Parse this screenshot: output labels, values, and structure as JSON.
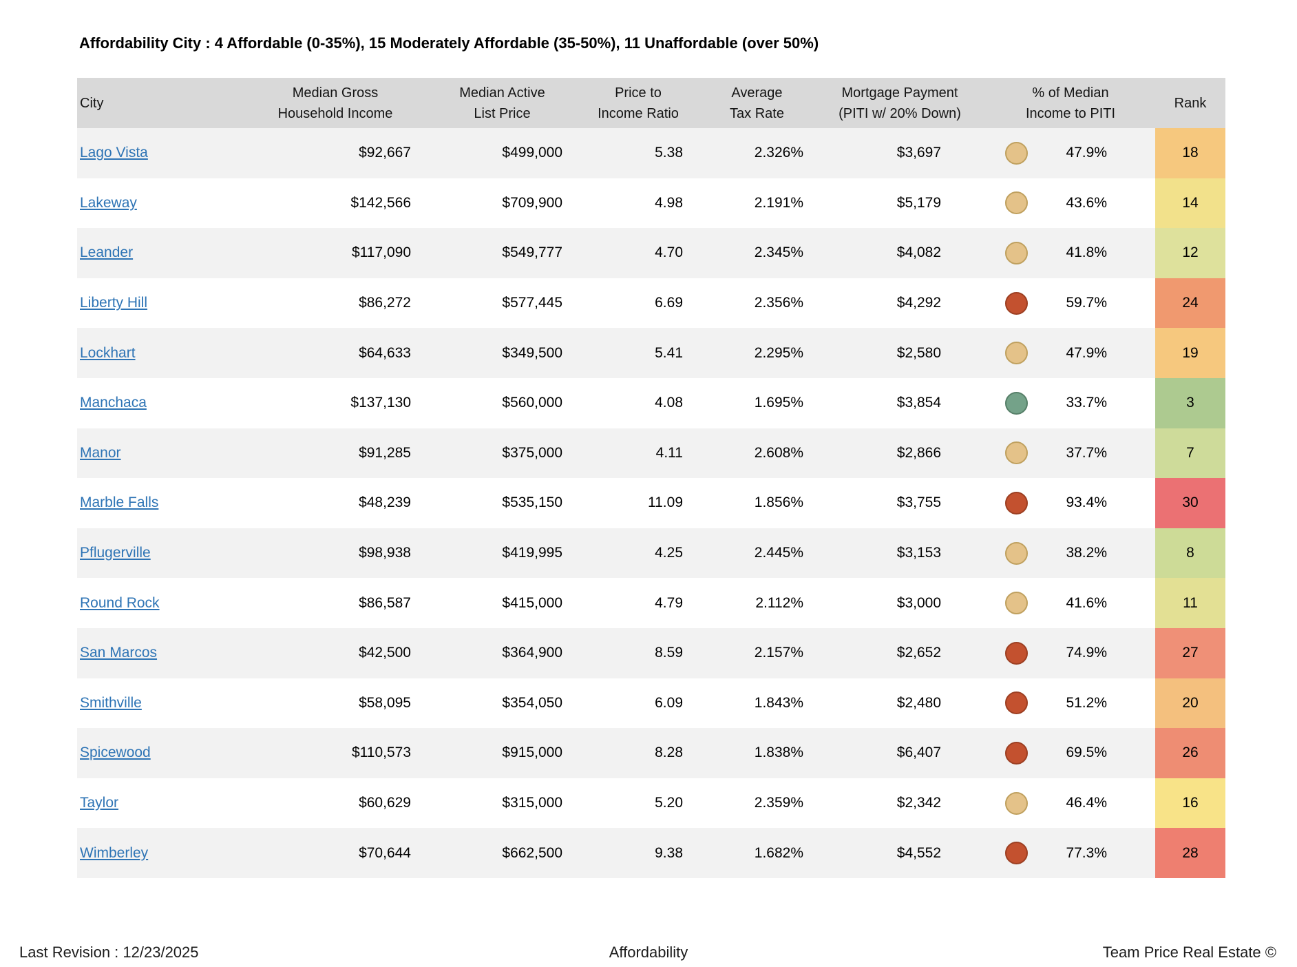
{
  "title": "Affordability City :  4 Affordable  (0-35%),  15 Moderately Affordable (35-50%), 11 Unaffordable (over 50%)",
  "colors": {
    "header_bg": "#d9d9d9",
    "row_alt_bg": "#f2f2f2",
    "link_blue": "#2e74b5"
  },
  "dot_colors": {
    "affordable": {
      "fill": "#74a289",
      "border": "#567f68"
    },
    "moderate": {
      "fill": "#e4c289",
      "border": "#bfa05e"
    },
    "unaffordable": {
      "fill": "#c3512f",
      "border": "#9c3f22"
    }
  },
  "table": {
    "headers": [
      {
        "line1": "City",
        "line2": ""
      },
      {
        "line1": "Median Gross",
        "line2": "Household Income"
      },
      {
        "line1": "Median Active",
        "line2": "List Price"
      },
      {
        "line1": "Price to",
        "line2": "Income Ratio"
      },
      {
        "line1": "Average",
        "line2": "Tax Rate"
      },
      {
        "line1": "Mortgage Payment",
        "line2": "(PITI w/ 20% Down)"
      },
      {
        "line1": "% of Median",
        "line2": "Income to PITI"
      },
      {
        "line1": "Rank",
        "line2": ""
      }
    ],
    "rows": [
      {
        "city": "Lago Vista",
        "income": "$92,667",
        "list_price": "$499,000",
        "ratio": "5.38",
        "tax_rate": "2.326%",
        "payment": "$3,697",
        "status": "moderate",
        "pct": "47.9%",
        "rank": "18",
        "rank_color": "#f6c87e"
      },
      {
        "city": "Lakeway",
        "income": "$142,566",
        "list_price": "$709,900",
        "ratio": "4.98",
        "tax_rate": "2.191%",
        "payment": "$5,179",
        "status": "moderate",
        "pct": "43.6%",
        "rank": "14",
        "rank_color": "#f2e18b"
      },
      {
        "city": "Leander",
        "income": "$117,090",
        "list_price": "$549,777",
        "ratio": "4.70",
        "tax_rate": "2.345%",
        "payment": "$4,082",
        "status": "moderate",
        "pct": "41.8%",
        "rank": "12",
        "rank_color": "#dee19c"
      },
      {
        "city": "Liberty Hill",
        "income": "$86,272",
        "list_price": "$577,445",
        "ratio": "6.69",
        "tax_rate": "2.356%",
        "payment": "$4,292",
        "status": "unaffordable",
        "pct": "59.7%",
        "rank": "24",
        "rank_color": "#f0996f"
      },
      {
        "city": "Lockhart",
        "income": "$64,633",
        "list_price": "$349,500",
        "ratio": "5.41",
        "tax_rate": "2.295%",
        "payment": "$2,580",
        "status": "moderate",
        "pct": "47.9%",
        "rank": "19",
        "rank_color": "#f6c87e"
      },
      {
        "city": "Manchaca",
        "income": "$137,130",
        "list_price": "$560,000",
        "ratio": "4.08",
        "tax_rate": "1.695%",
        "payment": "$3,854",
        "status": "affordable",
        "pct": "33.7%",
        "rank": "3",
        "rank_color": "#adca90"
      },
      {
        "city": "Manor",
        "income": "$91,285",
        "list_price": "$375,000",
        "ratio": "4.11",
        "tax_rate": "2.608%",
        "payment": "$2,866",
        "status": "moderate",
        "pct": "37.7%",
        "rank": "7",
        "rank_color": "#cedb9a"
      },
      {
        "city": "Marble Falls",
        "income": "$48,239",
        "list_price": "$535,150",
        "ratio": "11.09",
        "tax_rate": "1.856%",
        "payment": "$3,755",
        "status": "unaffordable",
        "pct": "93.4%",
        "rank": "30",
        "rank_color": "#eb7173"
      },
      {
        "city": "Pflugerville",
        "income": "$98,938",
        "list_price": "$419,995",
        "ratio": "4.25",
        "tax_rate": "2.445%",
        "payment": "$3,153",
        "status": "moderate",
        "pct": "38.2%",
        "rank": "8",
        "rank_color": "#cddb97"
      },
      {
        "city": "Round Rock",
        "income": "$86,587",
        "list_price": "$415,000",
        "ratio": "4.79",
        "tax_rate": "2.112%",
        "payment": "$3,000",
        "status": "moderate",
        "pct": "41.6%",
        "rank": "11",
        "rank_color": "#e3e094"
      },
      {
        "city": "San Marcos",
        "income": "$42,500",
        "list_price": "$364,900",
        "ratio": "8.59",
        "tax_rate": "2.157%",
        "payment": "$2,652",
        "status": "unaffordable",
        "pct": "74.9%",
        "rank": "27",
        "rank_color": "#ef9077"
      },
      {
        "city": "Smithville",
        "income": "$58,095",
        "list_price": "$354,050",
        "ratio": "6.09",
        "tax_rate": "1.843%",
        "payment": "$2,480",
        "status": "unaffordable",
        "pct": "51.2%",
        "rank": "20",
        "rank_color": "#f4c07e"
      },
      {
        "city": "Spicewood",
        "income": "$110,573",
        "list_price": "$915,000",
        "ratio": "8.28",
        "tax_rate": "1.838%",
        "payment": "$6,407",
        "status": "unaffordable",
        "pct": "69.5%",
        "rank": "26",
        "rank_color": "#ee8d73"
      },
      {
        "city": "Taylor",
        "income": "$60,629",
        "list_price": "$315,000",
        "ratio": "5.20",
        "tax_rate": "2.359%",
        "payment": "$2,342",
        "status": "moderate",
        "pct": "46.4%",
        "rank": "16",
        "rank_color": "#f8e388"
      },
      {
        "city": "Wimberley",
        "income": "$70,644",
        "list_price": "$662,500",
        "ratio": "9.38",
        "tax_rate": "1.682%",
        "payment": "$4,552",
        "status": "unaffordable",
        "pct": "77.3%",
        "rank": "28",
        "rank_color": "#ee7f70"
      }
    ]
  },
  "chart_data": {
    "type": "table",
    "title": "Affordability City :  4 Affordable  (0-35%),  15 Moderately Affordable (35-50%), 11 Unaffordable (over 50%)",
    "columns": [
      "City",
      "Median Gross Household Income",
      "Median Active List Price",
      "Price to Income Ratio",
      "Average Tax Rate",
      "Mortgage Payment (PITI w/ 20% Down)",
      "% of Median Income to PITI",
      "Rank"
    ],
    "rows": [
      [
        "Lago Vista",
        92667,
        499000,
        5.38,
        2.326,
        3697,
        47.9,
        18
      ],
      [
        "Lakeway",
        142566,
        709900,
        4.98,
        2.191,
        5179,
        43.6,
        14
      ],
      [
        "Leander",
        117090,
        549777,
        4.7,
        2.345,
        4082,
        41.8,
        12
      ],
      [
        "Liberty Hill",
        86272,
        577445,
        6.69,
        2.356,
        4292,
        59.7,
        24
      ],
      [
        "Lockhart",
        64633,
        349500,
        5.41,
        2.295,
        2580,
        47.9,
        19
      ],
      [
        "Manchaca",
        137130,
        560000,
        4.08,
        1.695,
        3854,
        33.7,
        3
      ],
      [
        "Manor",
        91285,
        375000,
        4.11,
        2.608,
        2866,
        37.7,
        7
      ],
      [
        "Marble Falls",
        48239,
        535150,
        11.09,
        1.856,
        3755,
        93.4,
        30
      ],
      [
        "Pflugerville",
        98938,
        419995,
        4.25,
        2.445,
        3153,
        38.2,
        8
      ],
      [
        "Round Rock",
        86587,
        415000,
        4.79,
        2.112,
        3000,
        41.6,
        11
      ],
      [
        "San Marcos",
        42500,
        364900,
        8.59,
        2.157,
        2652,
        74.9,
        27
      ],
      [
        "Smithville",
        58095,
        354050,
        6.09,
        1.843,
        2480,
        51.2,
        20
      ],
      [
        "Spicewood",
        110573,
        915000,
        8.28,
        1.838,
        6407,
        69.5,
        26
      ],
      [
        "Taylor",
        60629,
        315000,
        5.2,
        2.359,
        2342,
        46.4,
        16
      ],
      [
        "Wimberley",
        70644,
        662500,
        9.38,
        1.682,
        4552,
        77.3,
        28
      ]
    ]
  },
  "footer": {
    "left": "Last Revision : 12/23/2025",
    "center": "Affordability",
    "right": "Team Price Real Estate ©"
  }
}
